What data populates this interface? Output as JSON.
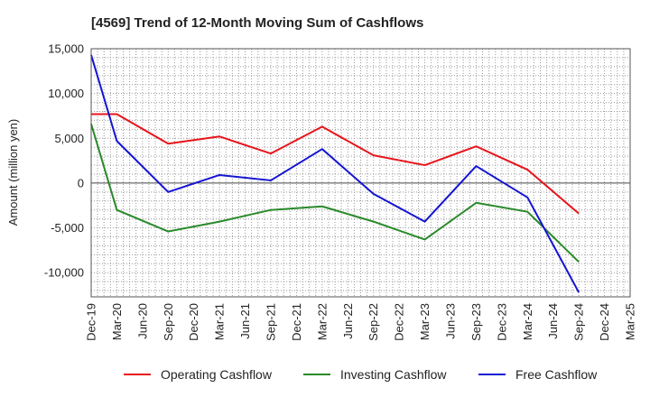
{
  "chart_data": {
    "type": "line",
    "title": "[4569]  Trend of 12-Month Moving Sum of Cashflows",
    "xlabel": "",
    "ylabel": "Amount (million yen)",
    "ylim": [
      -12700,
      15000
    ],
    "yticks": [
      15000,
      10000,
      5000,
      0,
      -5000,
      -10000
    ],
    "ytick_labels": [
      "15,000",
      "10,000",
      "5,000",
      "0",
      "-5,000",
      "-10,000"
    ],
    "categories": [
      "Dec-19",
      "Mar-20",
      "Jun-20",
      "Sep-20",
      "Dec-20",
      "Mar-21",
      "Jun-21",
      "Sep-21",
      "Dec-21",
      "Mar-22",
      "Jun-22",
      "Sep-22",
      "Dec-22",
      "Mar-23",
      "Jun-23",
      "Sep-23",
      "Dec-23",
      "Mar-24",
      "Jun-24",
      "Sep-24",
      "Dec-24",
      "Mar-25"
    ],
    "grid": true,
    "legend_position": "bottom",
    "series": [
      {
        "name": "Operating Cashflow",
        "color": "#e8141b",
        "values": [
          7700,
          7700,
          null,
          4400,
          null,
          5200,
          null,
          3300,
          null,
          6300,
          null,
          3100,
          null,
          2000,
          null,
          4100,
          null,
          1500,
          null,
          -3400,
          null,
          null
        ]
      },
      {
        "name": "Investing Cashflow",
        "color": "#2a8a2a",
        "values": [
          6600,
          -3000,
          null,
          -5400,
          null,
          -4300,
          null,
          -3000,
          null,
          -2600,
          null,
          -4300,
          null,
          -6300,
          null,
          -2200,
          null,
          -3200,
          null,
          -8800,
          null,
          null
        ]
      },
      {
        "name": "Free Cashflow",
        "color": "#1414d2",
        "values": [
          14300,
          4700,
          null,
          -1000,
          null,
          900,
          null,
          300,
          null,
          3800,
          null,
          -1200,
          null,
          -4300,
          null,
          1900,
          null,
          -1600,
          null,
          -12200,
          null,
          null
        ]
      }
    ]
  }
}
